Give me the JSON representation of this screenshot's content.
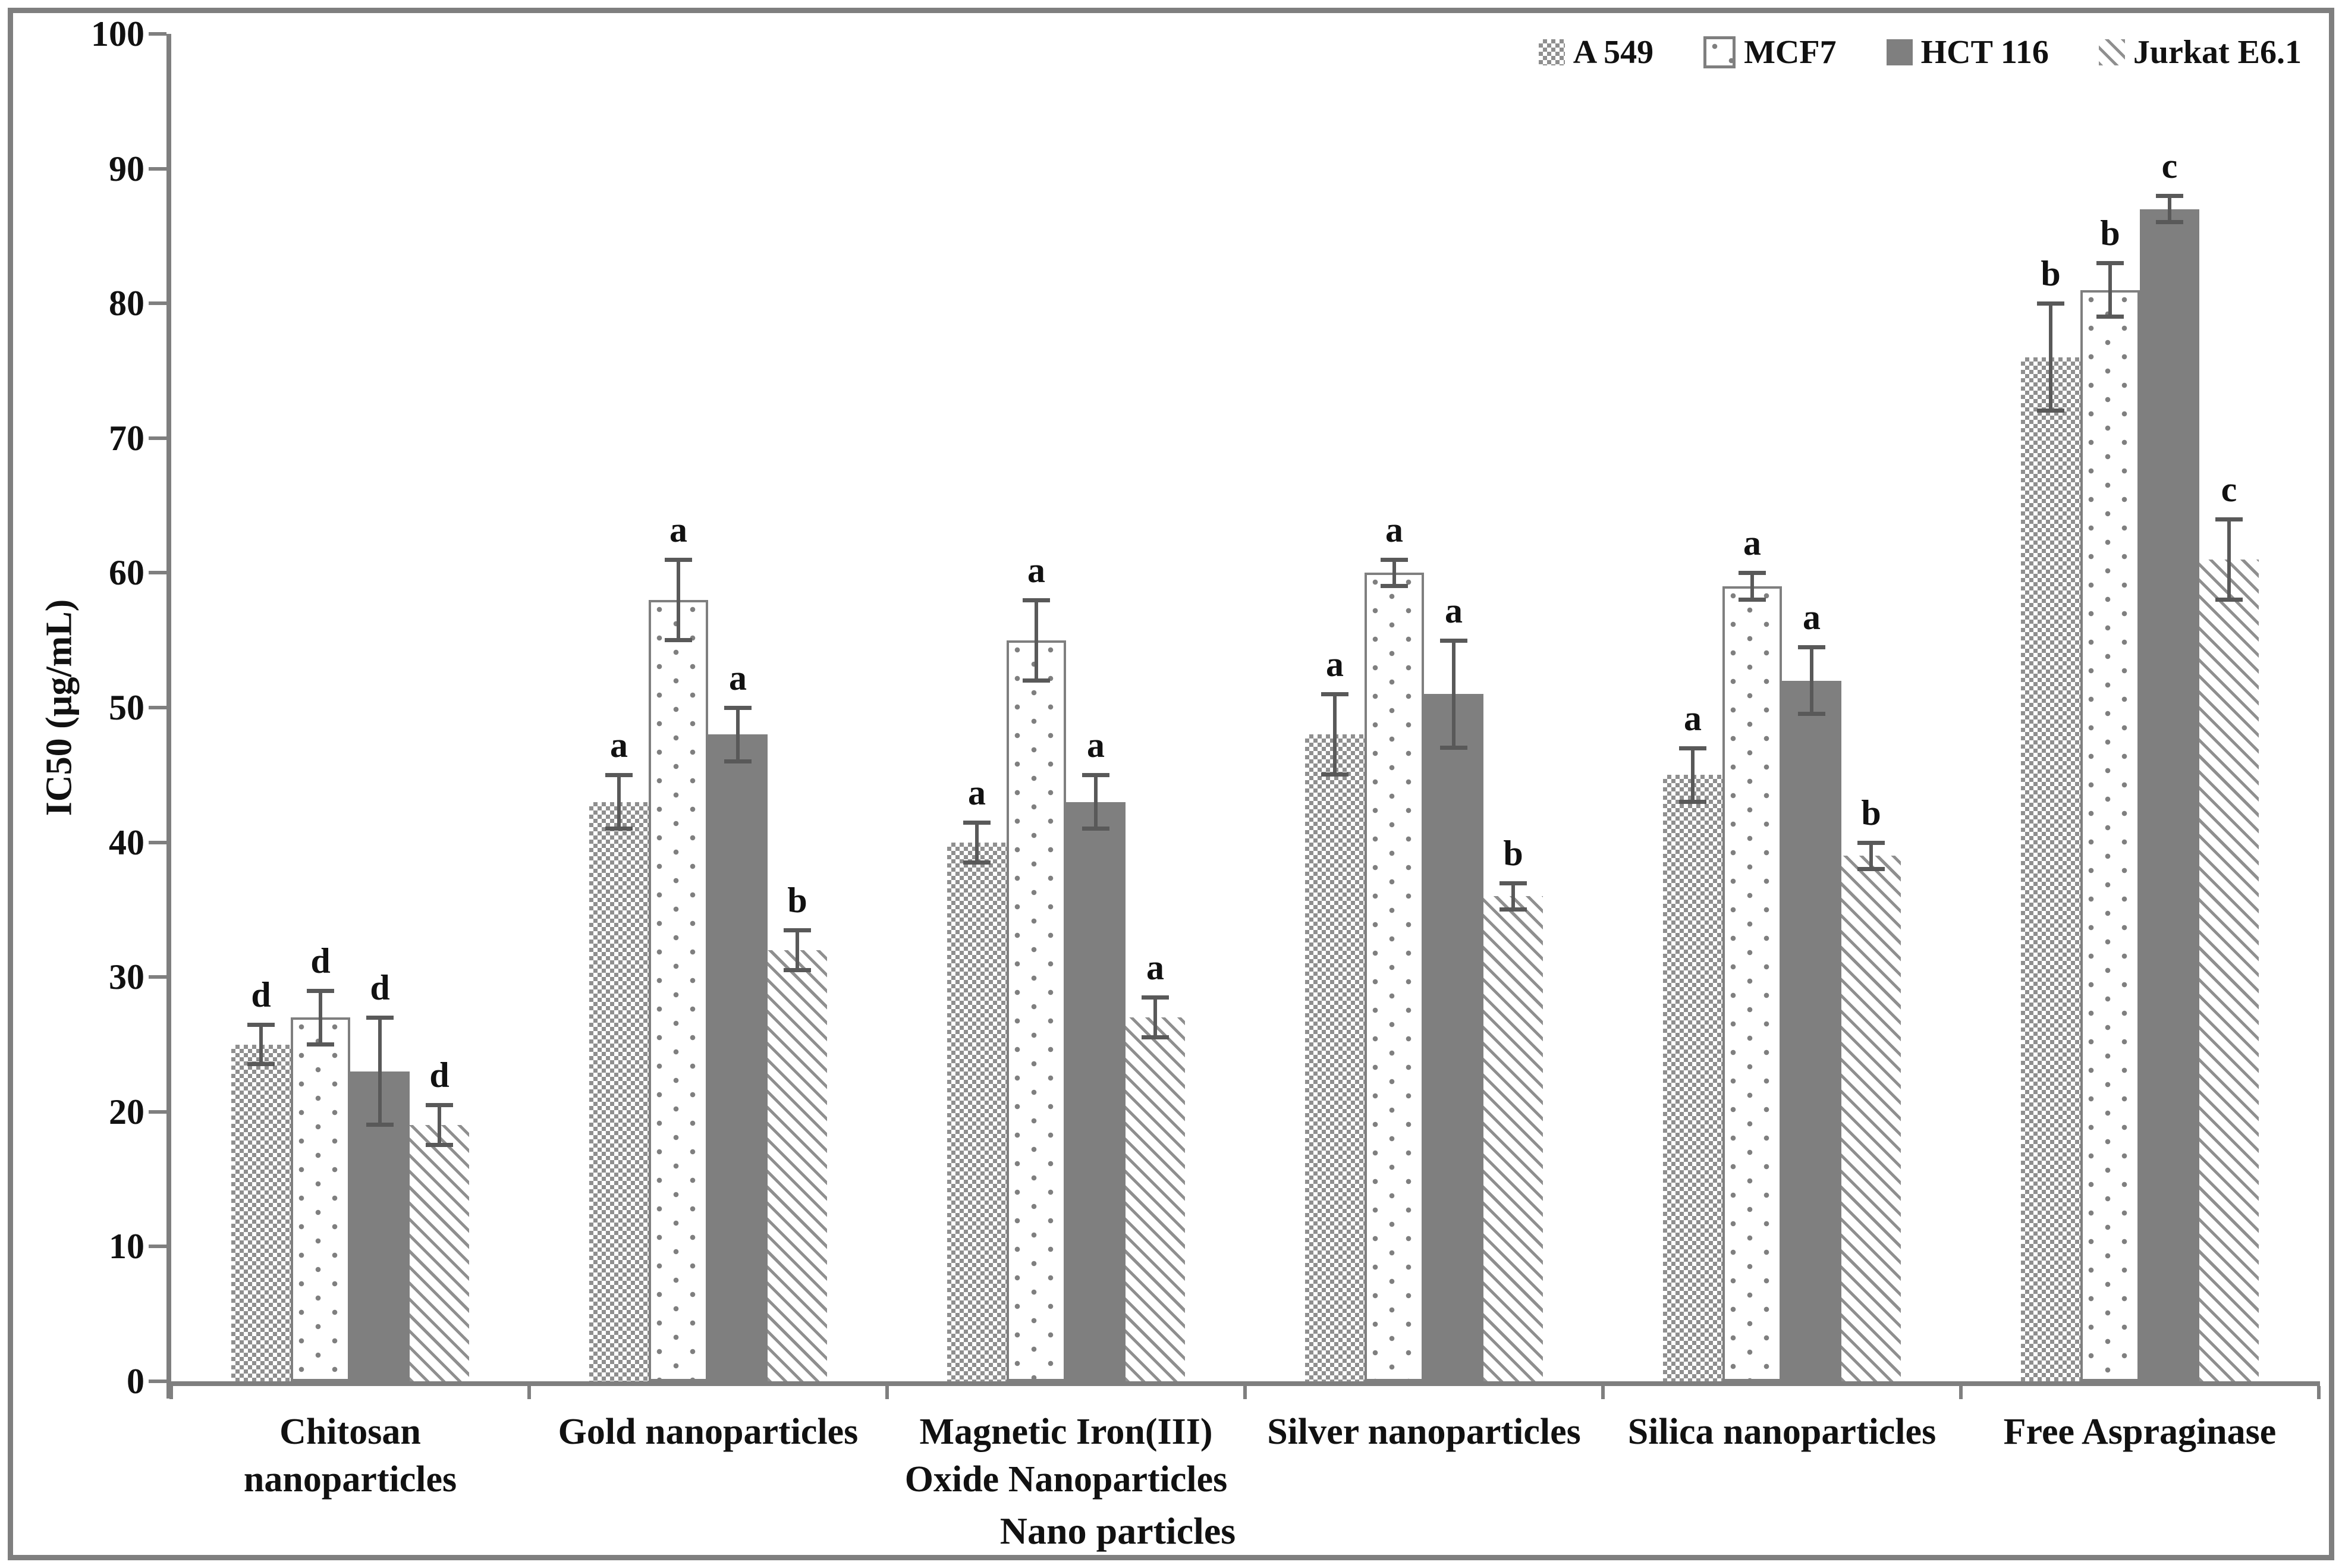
{
  "figure": {
    "y_axis_title": "IC50 (µg/mL)",
    "x_axis_title": "Nano particles"
  },
  "colors": {
    "axis": "#7f7f7f",
    "frame_border": "#7f7f7f",
    "error_bar": "#595959",
    "solid_fill": "#7f7f7f",
    "pattern_gray": "#8f8f8f",
    "text": "#111111",
    "background": "#ffffff"
  },
  "chart_data": {
    "type": "bar",
    "title": "",
    "xlabel": "Nano particles",
    "ylabel": "IC50 (µg/mL)",
    "ylim": [
      0,
      100
    ],
    "y_tick_step": 10,
    "grid": false,
    "legend_position": "top-right",
    "error_bars": true,
    "categories": [
      "Chitosan nanoparticles",
      "Gold nanoparticles",
      "Magnetic Iron(III) Oxide Nanoparticles",
      "Silver nanoparticles",
      "Silica nanoparticles",
      "Free Aspraginase"
    ],
    "category_label_lines": [
      [
        "Chitosan",
        "nanoparticles"
      ],
      [
        "Gold nanoparticles"
      ],
      [
        "Magnetic Iron(III)",
        "Oxide Nanoparticles"
      ],
      [
        "Silver nanoparticles"
      ],
      [
        "Silica nanoparticles"
      ],
      [
        "Free Aspraginase"
      ]
    ],
    "series": [
      {
        "name": "A 549",
        "pattern": "checker",
        "values": [
          25,
          43,
          40,
          48,
          45,
          76
        ],
        "errors": [
          1.5,
          2,
          1.5,
          3,
          2,
          4
        ],
        "sig_letters": [
          "d",
          "a",
          "a",
          "a",
          "a",
          "b"
        ]
      },
      {
        "name": "MCF7",
        "pattern": "dots",
        "values": [
          27,
          58,
          55,
          60,
          59,
          81
        ],
        "errors": [
          2,
          3,
          3,
          1,
          1,
          2
        ],
        "sig_letters": [
          "d",
          "a",
          "a",
          "a",
          "a",
          "b"
        ]
      },
      {
        "name": "HCT 116",
        "pattern": "solid",
        "values": [
          23,
          48,
          43,
          51,
          52,
          87
        ],
        "errors": [
          4,
          2,
          2,
          4,
          2.5,
          1
        ],
        "sig_letters": [
          "d",
          "a",
          "a",
          "a",
          "a",
          "c"
        ]
      },
      {
        "name": "Jurkat E6.1",
        "pattern": "hatch",
        "values": [
          19,
          32,
          27,
          36,
          39,
          61
        ],
        "errors": [
          1.5,
          1.5,
          1.5,
          1,
          1,
          3
        ],
        "sig_letters": [
          "d",
          "b",
          "a",
          "b",
          "b",
          "c"
        ]
      }
    ]
  }
}
